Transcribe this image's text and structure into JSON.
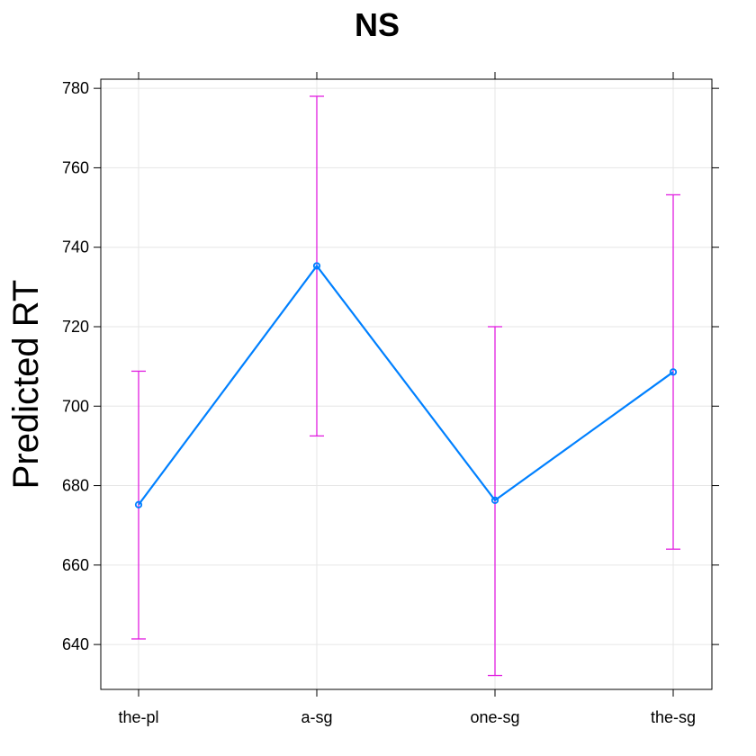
{
  "chart_data": {
    "type": "line",
    "title": "NS",
    "xlabel": "",
    "ylabel": "Predicted RT",
    "categories": [
      "the-pl",
      "a-sg",
      "one-sg",
      "the-sg"
    ],
    "series": [
      {
        "values": [
          675.2,
          735.3,
          676.3,
          708.6
        ],
        "lower": [
          641.4,
          692.5,
          632.2,
          664.0
        ],
        "upper": [
          708.8,
          778.0,
          720.0,
          753.2
        ]
      }
    ],
    "ylim": [
      628.7,
      782.3
    ],
    "yticks": [
      640,
      660,
      680,
      700,
      720,
      740,
      760,
      780
    ],
    "grid": true,
    "colors": {
      "line": "#0080ff",
      "errorbar": "#e11ee0",
      "grid": "#e6e6e6",
      "axis": "#000000"
    }
  }
}
